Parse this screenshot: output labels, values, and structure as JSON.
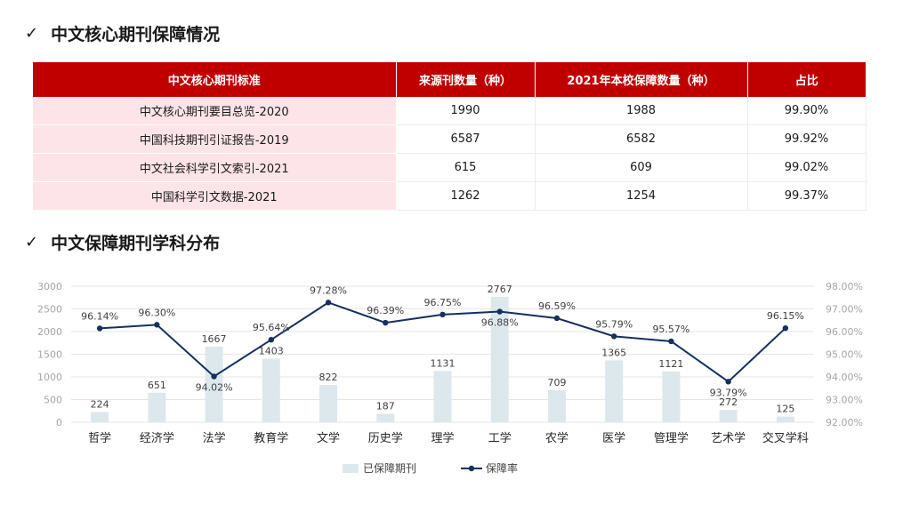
{
  "section1": {
    "check": "✓",
    "title": "中文核心期刊保障情况"
  },
  "table": {
    "headers": [
      "中文核心期刊标准",
      "来源刊数量（种）",
      "2021年本校保障数量（种）",
      "占比"
    ],
    "rows": [
      [
        "中文核心期刊要目总览-2020",
        "1990",
        "1988",
        "99.90%"
      ],
      [
        "中国科技期刊引证报告-2019",
        "6587",
        "6582",
        "99.92%"
      ],
      [
        "中文社会科学引文索引-2021",
        "615",
        "609",
        "99.02%"
      ],
      [
        "中国科学引文数据-2021",
        "1262",
        "1254",
        "99.37%"
      ]
    ]
  },
  "section2": {
    "check": "✓",
    "title": "中文保障期刊学科分布"
  },
  "chart_data": {
    "type": "bar+line",
    "categories": [
      "哲学",
      "经济学",
      "法学",
      "教育学",
      "文学",
      "历史学",
      "理学",
      "工学",
      "农学",
      "医学",
      "管理学",
      "艺术学",
      "交叉学科"
    ],
    "series": [
      {
        "name": "已保障期刊",
        "type": "bar",
        "axis": "left",
        "color": "#dde8ed",
        "values": [
          224,
          651,
          1667,
          1403,
          822,
          187,
          1131,
          2767,
          709,
          1365,
          1121,
          272,
          125
        ]
      },
      {
        "name": "保障率",
        "type": "line",
        "axis": "right",
        "color": "#14305f",
        "values": [
          96.14,
          96.3,
          94.02,
          95.64,
          97.28,
          96.39,
          96.75,
          96.88,
          96.59,
          95.79,
          95.57,
          93.79,
          96.15
        ],
        "labels": [
          "96.14%",
          "96.30%",
          "94.02%",
          "95.64%",
          "97.28%",
          "96.39%",
          "96.75%",
          "96.88%",
          "96.59%",
          "95.79%",
          "95.57%",
          "93.79%",
          "96.15%"
        ]
      }
    ],
    "y_left": {
      "min": 0,
      "max": 3000,
      "ticks": [
        "0",
        "500",
        "1000",
        "1500",
        "2000",
        "2500",
        "3000"
      ]
    },
    "y_right": {
      "min": 92,
      "max": 98,
      "ticks": [
        "92.00%",
        "93.00%",
        "94.00%",
        "95.00%",
        "96.00%",
        "97.00%",
        "98.00%"
      ]
    },
    "grid": true,
    "legend": "bottom"
  }
}
